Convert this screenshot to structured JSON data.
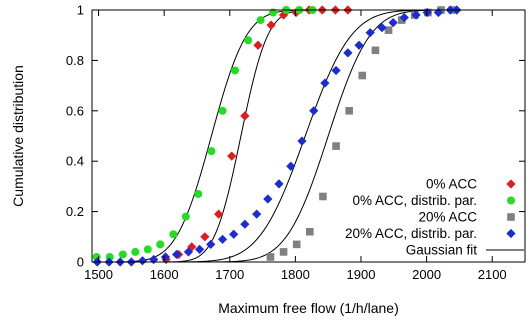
{
  "chart_data": {
    "type": "scatter",
    "xlabel": "Maximum free flow (1/h/lane)",
    "ylabel": "Cumulative distribution",
    "xlim": [
      1490,
      2150
    ],
    "ylim": [
      0,
      1
    ],
    "x_ticks": [
      1500,
      1600,
      1700,
      1800,
      1900,
      2000,
      2100
    ],
    "y_ticks": [
      0,
      0.2,
      0.4,
      0.6,
      0.8,
      1
    ],
    "x_tick_labels": [
      "1500",
      "1600",
      "1700",
      "1800",
      "1900",
      "2000",
      "2100"
    ],
    "y_tick_labels": [
      "0",
      "0.2",
      "0.4",
      "0.6",
      "0.8",
      "1"
    ],
    "grid": false,
    "legend_position": "bottom-right",
    "series": [
      {
        "name": "0% ACC",
        "marker": "diamond",
        "color": "#e41a1c",
        "points": [
          [
            1603,
            0.01
          ],
          [
            1622,
            0.03
          ],
          [
            1642,
            0.06
          ],
          [
            1662,
            0.1
          ],
          [
            1683,
            0.19
          ],
          [
            1703,
            0.42
          ],
          [
            1723,
            0.58
          ],
          [
            1743,
            0.86
          ],
          [
            1763,
            0.94
          ],
          [
            1782,
            0.98
          ],
          [
            1801,
            0.99
          ],
          [
            1821,
            1.0
          ],
          [
            1841,
            1.0
          ],
          [
            1861,
            1.0
          ],
          [
            1880,
            1.0
          ]
        ]
      },
      {
        "name": "0% ACC, distrib. par.",
        "marker": "circle",
        "color": "#22dd22",
        "points": [
          [
            1497,
            0.02
          ],
          [
            1517,
            0.02
          ],
          [
            1537,
            0.03
          ],
          [
            1556,
            0.04
          ],
          [
            1575,
            0.05
          ],
          [
            1594,
            0.07
          ],
          [
            1614,
            0.11
          ],
          [
            1633,
            0.18
          ],
          [
            1652,
            0.27
          ],
          [
            1672,
            0.44
          ],
          [
            1689,
            0.6
          ],
          [
            1708,
            0.76
          ],
          [
            1728,
            0.88
          ],
          [
            1747,
            0.96
          ],
          [
            1766,
            0.99
          ],
          [
            1786,
            1.0
          ],
          [
            1806,
            1.0
          ],
          [
            1826,
            1.0
          ]
        ]
      },
      {
        "name": "20% ACC",
        "marker": "square",
        "color": "#808080",
        "points": [
          [
            1762,
            0.02
          ],
          [
            1782,
            0.04
          ],
          [
            1802,
            0.07
          ],
          [
            1822,
            0.12
          ],
          [
            1842,
            0.26
          ],
          [
            1862,
            0.46
          ],
          [
            1882,
            0.6
          ],
          [
            1902,
            0.74
          ],
          [
            1922,
            0.84
          ],
          [
            1942,
            0.92
          ],
          [
            1962,
            0.96
          ],
          [
            1982,
            0.98
          ],
          [
            2002,
            0.99
          ],
          [
            2022,
            1.0
          ],
          [
            2042,
            1.0
          ]
        ]
      },
      {
        "name": "20% ACC, distrib. par.",
        "marker": "diamond",
        "color": "#1a2bd8",
        "points": [
          [
            1498,
            0.0
          ],
          [
            1516,
            0.0
          ],
          [
            1533,
            0.0
          ],
          [
            1550,
            0.0
          ],
          [
            1567,
            0.005
          ],
          [
            1584,
            0.01
          ],
          [
            1602,
            0.02
          ],
          [
            1619,
            0.03
          ],
          [
            1637,
            0.04
          ],
          [
            1654,
            0.05
          ],
          [
            1671,
            0.07
          ],
          [
            1689,
            0.09
          ],
          [
            1706,
            0.11
          ],
          [
            1723,
            0.15
          ],
          [
            1741,
            0.19
          ],
          [
            1758,
            0.25
          ],
          [
            1775,
            0.31
          ],
          [
            1793,
            0.38
          ],
          [
            1810,
            0.48
          ],
          [
            1828,
            0.6
          ],
          [
            1845,
            0.71
          ],
          [
            1862,
            0.76
          ],
          [
            1880,
            0.83
          ],
          [
            1897,
            0.86
          ],
          [
            1914,
            0.91
          ],
          [
            1932,
            0.93
          ],
          [
            1949,
            0.95
          ],
          [
            1966,
            0.97
          ],
          [
            1984,
            0.98
          ],
          [
            2001,
            0.99
          ],
          [
            2018,
            0.99
          ],
          [
            2036,
            1.0
          ],
          [
            2046,
            1.0
          ]
        ]
      }
    ],
    "fit": {
      "name": "Gaussian fit",
      "color": "#000000",
      "curves": [
        {
          "mean": 1672,
          "sd": 42
        },
        {
          "mean": 1717,
          "sd": 32
        },
        {
          "mean": 1815,
          "sd": 55
        },
        {
          "mean": 1850,
          "sd": 50
        }
      ]
    }
  }
}
